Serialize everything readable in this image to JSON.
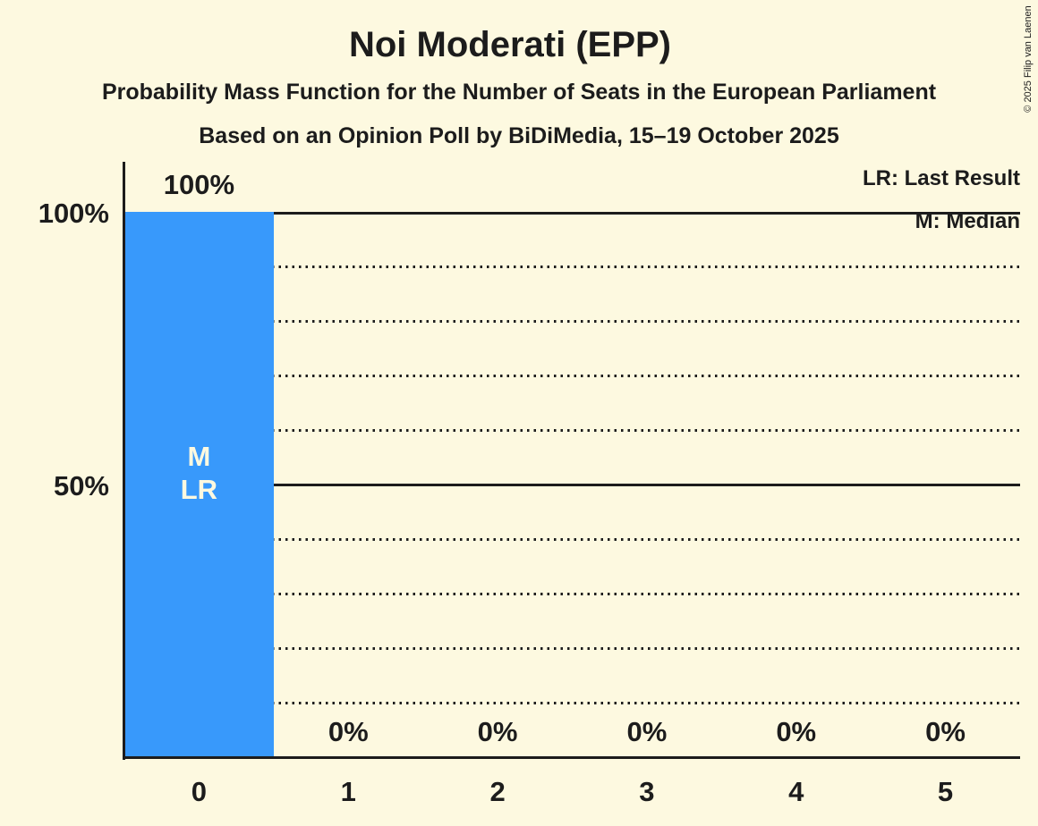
{
  "header": {
    "title": "Noi Moderati (EPP)",
    "subtitle_line1": "Probability Mass Function for the Number of Seats in the European Parliament",
    "subtitle_line2": "Based on an Opinion Poll by BiDiMedia, 15–19 October 2025"
  },
  "legend": {
    "last_result": "LR: Last Result",
    "median": "M: Median"
  },
  "copyright": "© 2025 Filip van Laenen",
  "colors": {
    "background": "#FDF9E0",
    "bar": "#3899FB",
    "ink": "#1C1C1C",
    "bar_label": "#FDF9E0"
  },
  "chart_data": {
    "type": "bar",
    "title": "Noi Moderati (EPP)",
    "categories": [
      "0",
      "1",
      "2",
      "3",
      "4",
      "5"
    ],
    "values": [
      100,
      0,
      0,
      0,
      0,
      0
    ],
    "value_labels": [
      "100%",
      "0%",
      "0%",
      "0%",
      "0%",
      "0%"
    ],
    "y_tick_labels": [
      "100%",
      "50%"
    ],
    "ylim": [
      0,
      100
    ],
    "solid_gridlines_pct": [
      100,
      50
    ],
    "dotted_gridlines_pct": [
      90,
      80,
      70,
      60,
      40,
      30,
      20,
      10
    ],
    "bar_annotations": [
      "M",
      "LR"
    ],
    "median_seat": "0",
    "last_result_seat": "0",
    "legend_position": "top-right",
    "grid": "horizontal-only"
  }
}
